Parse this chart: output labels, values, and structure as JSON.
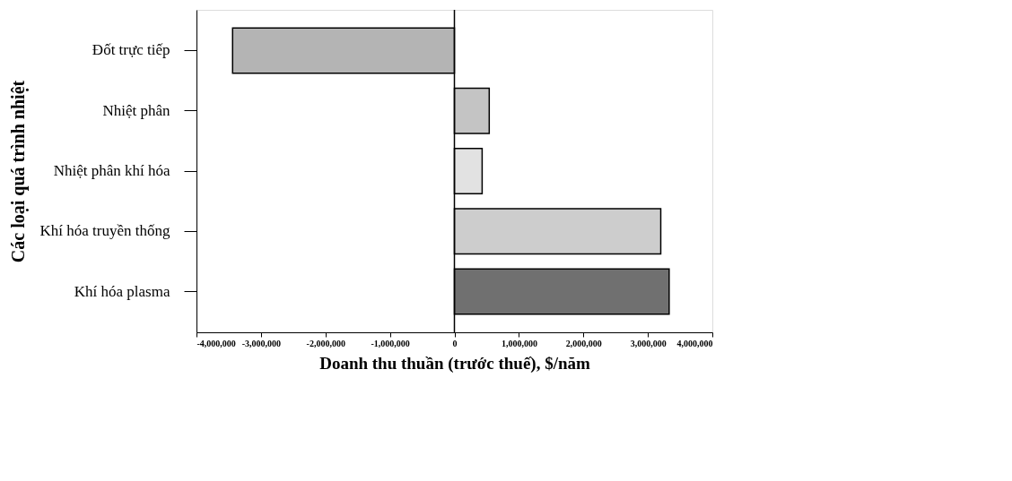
{
  "chart_data": {
    "type": "bar",
    "orientation": "horizontal",
    "xlabel": "Doanh thu thuần (trước thuế), $/năm",
    "ylabel": "Các loại quá trình nhiệt",
    "categories": [
      "Đốt trực tiếp",
      "Nhiệt phân",
      "Nhiệt phân khí hóa",
      "Khí hóa truyền thống",
      "Khí hóa plasma"
    ],
    "values": [
      -3440000,
      540000,
      430000,
      3200000,
      3330000
    ],
    "colors": [
      "#b4b4b4",
      "#c4c4c4",
      "#e2e2e2",
      "#cdcdcd",
      "#707070"
    ],
    "xlim": [
      -4000000,
      4000000
    ],
    "xticks": [
      {
        "value": -4000000,
        "label": "-4,000,000"
      },
      {
        "value": -3000000,
        "label": "-3,000,000"
      },
      {
        "value": -2000000,
        "label": "-2,000,000"
      },
      {
        "value": -1000000,
        "label": "-1,000,000"
      },
      0,
      {
        "value": 1000000,
        "label": "1,000,000"
      },
      {
        "value": 2000000,
        "label": "2,000,000"
      },
      {
        "value": 3000000,
        "label": "3,000,000"
      },
      {
        "value": 4000000,
        "label": "4,000,000"
      }
    ],
    "ref_lines": [
      {
        "axis": "x",
        "value": 0,
        "color": "#000000"
      }
    ],
    "grid": false,
    "legend": false
  }
}
